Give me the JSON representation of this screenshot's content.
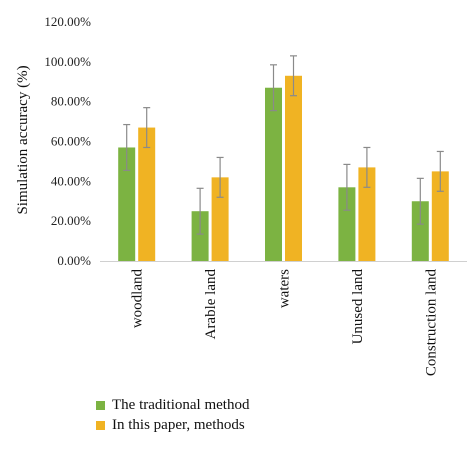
{
  "chart_data": {
    "type": "bar",
    "ylabel": "Simulation accuracy (%)",
    "categories": [
      "woodland",
      "Arable land",
      "waters",
      "Unused land",
      "Construction land"
    ],
    "yticks": [
      "0.00%",
      "20.00%",
      "40.00%",
      "60.00%",
      "80.00%",
      "100.00%",
      "120.00%"
    ],
    "ylim": [
      0,
      120
    ],
    "grid": false,
    "legend_position": "bottom-left",
    "series": [
      {
        "name": "The traditional method",
        "color": "#7cb342",
        "values": [
          57,
          25,
          87,
          37,
          30
        ],
        "error": [
          11.5,
          11.5,
          11.5,
          11.5,
          11.5
        ]
      },
      {
        "name": "In this paper, methods",
        "color": "#f0b323",
        "values": [
          67,
          42,
          93,
          47,
          45
        ],
        "error": [
          10,
          10,
          10,
          10,
          10
        ]
      }
    ]
  }
}
